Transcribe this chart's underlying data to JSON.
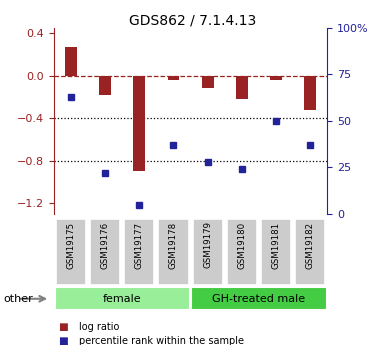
{
  "title": "GDS862 / 7.1.4.13",
  "samples": [
    "GSM19175",
    "GSM19176",
    "GSM19177",
    "GSM19178",
    "GSM19179",
    "GSM19180",
    "GSM19181",
    "GSM19182"
  ],
  "log_ratio": [
    0.27,
    -0.18,
    -0.9,
    -0.04,
    -0.12,
    -0.22,
    -0.04,
    -0.32
  ],
  "percentile_rank": [
    63,
    22,
    5,
    37,
    28,
    24,
    50,
    37
  ],
  "groups": [
    {
      "label": "female",
      "color": "#99ee99",
      "start": 0,
      "end": 3
    },
    {
      "label": "GH-treated male",
      "color": "#44cc44",
      "start": 4,
      "end": 7
    }
  ],
  "bar_color": "#992222",
  "dot_color": "#222299",
  "ylim_left": [
    -1.3,
    0.45
  ],
  "ylim_right": [
    0,
    100
  ],
  "yticks_left": [
    0.4,
    0.0,
    -0.4,
    -0.8,
    -1.2
  ],
  "yticks_right": [
    100,
    75,
    50,
    25,
    0
  ],
  "hline_y": 0.0,
  "dotted_lines": [
    -0.4,
    -0.8
  ],
  "legend_items": [
    {
      "label": "log ratio",
      "color": "#992222"
    },
    {
      "label": "percentile rank within the sample",
      "color": "#222299"
    }
  ],
  "other_label": "other",
  "background_color": "#ffffff",
  "bar_width": 0.35
}
